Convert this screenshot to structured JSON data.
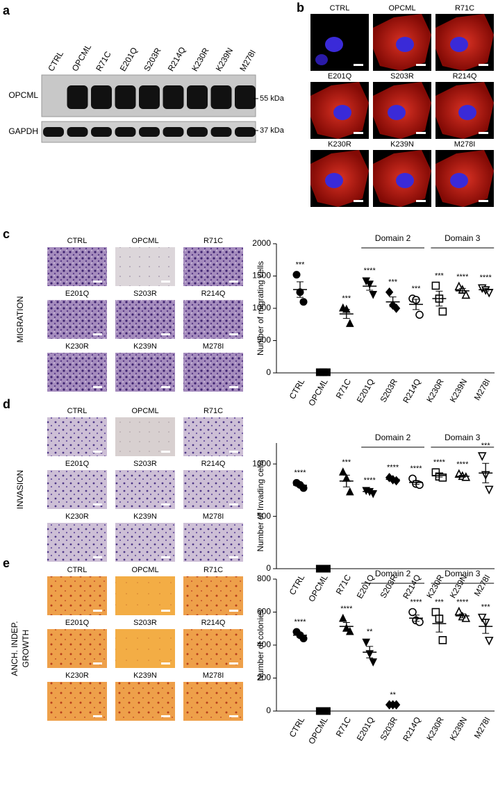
{
  "panel_letters": [
    "a",
    "b",
    "c",
    "d",
    "e"
  ],
  "blot": {
    "lanes": [
      "CTRL",
      "OPCML",
      "R71C",
      "E201Q",
      "S203R",
      "R214Q",
      "K230R",
      "K239N",
      "M278I"
    ],
    "rows": [
      {
        "label": "OPCML",
        "size": "55 kDa"
      },
      {
        "label": "GAPDH",
        "size": "37 kDa"
      }
    ]
  },
  "micrographs": {
    "labels": [
      "CTRL",
      "OPCML",
      "R71C",
      "E201Q",
      "S203R",
      "R214Q",
      "K230R",
      "K239N",
      "M278I"
    ]
  },
  "assays": [
    {
      "label": [
        "MIGRATION"
      ],
      "tiles": [
        "CTRL",
        "OPCML",
        "R71C",
        "E201Q",
        "S203R",
        "R214Q",
        "K230R",
        "K239N",
        "M278I"
      ]
    },
    {
      "label": [
        "INVASION"
      ],
      "tiles": [
        "CTRL",
        "OPCML",
        "R71C",
        "E201Q",
        "S203R",
        "R214Q",
        "K230R",
        "K239N",
        "M278I"
      ]
    },
    {
      "label": [
        "ANCH. INDEP.",
        "GROWTH"
      ],
      "tiles": [
        "CTRL",
        "OPCML",
        "R71C",
        "E201Q",
        "S203R",
        "R214Q",
        "K230R",
        "K239N",
        "M278I"
      ]
    }
  ],
  "chart_data": [
    {
      "type": "scatter",
      "y_label": "Number of migrating cells",
      "categories": [
        "CTRL",
        "OPCML",
        "R71C",
        "E201Q",
        "S203R",
        "R214Q",
        "K230R",
        "K239N",
        "M278I"
      ],
      "replicates": [
        [
          1520,
          1250,
          1100
        ],
        [
          10,
          10,
          10
        ],
        [
          1000,
          980,
          760
        ],
        [
          1430,
          1380,
          1220
        ],
        [
          1250,
          1050,
          1000
        ],
        [
          1150,
          1130,
          900
        ],
        [
          1350,
          1150,
          950
        ],
        [
          1330,
          1280,
          1200
        ],
        [
          1320,
          1290,
          1250
        ]
      ],
      "means": [
        1290,
        10,
        913,
        1343,
        1100,
        1060,
        1150,
        1270,
        1287
      ],
      "errors": [
        120,
        0,
        70,
        63,
        76,
        80,
        115,
        38,
        20
      ],
      "annotations": [
        "***",
        null,
        "***",
        "****",
        "***",
        "***",
        "***",
        "****",
        "****"
      ],
      "groups": [
        {
          "label": "Domain 2",
          "categories": [
            "E201Q",
            "S203R",
            "R214Q"
          ]
        },
        {
          "label": "Domain 3",
          "categories": [
            "K230R",
            "K239N",
            "M278I"
          ]
        }
      ],
      "markers": [
        "circle",
        "square",
        "triangle",
        "triangle-down",
        "diamond",
        "circle-open",
        "square-open",
        "triangle-open",
        "triangle-down-open"
      ],
      "color": "#000000",
      "ylim": [
        0,
        2000
      ],
      "yticks": [
        0,
        500,
        1000,
        1500,
        2000
      ]
    },
    {
      "type": "scatter",
      "y_label": "Number of Invading cells",
      "categories": [
        "CTRL",
        "OPCML",
        "R71C",
        "E201Q",
        "S203R",
        "R214Q",
        "K230R",
        "K239N",
        "M278I"
      ],
      "replicates": [
        [
          820,
          800,
          770
        ],
        [
          0,
          0,
          0
        ],
        [
          920,
          860,
          730
        ],
        [
          750,
          740,
          720
        ],
        [
          870,
          850,
          840
        ],
        [
          860,
          810,
          800
        ],
        [
          920,
          880,
          870
        ],
        [
          900,
          880,
          870
        ],
        [
          1080,
          900,
          760
        ]
      ],
      "means": [
        797,
        0,
        837,
        737,
        853,
        823,
        890,
        883,
        913
      ],
      "errors": [
        15,
        0,
        56,
        9,
        9,
        18,
        15,
        9,
        93
      ],
      "annotations": [
        "****",
        null,
        "***",
        "****",
        "****",
        "****",
        "****",
        "****",
        "***"
      ],
      "groups": [
        {
          "label": "Domain 2",
          "categories": [
            "E201Q",
            "S203R",
            "R214Q"
          ]
        },
        {
          "label": "Domain 3",
          "categories": [
            "K230R",
            "K239N",
            "M278I"
          ]
        }
      ],
      "markers": [
        "circle",
        "square",
        "triangle",
        "triangle-down",
        "diamond",
        "circle-open",
        "square-open",
        "triangle-open",
        "triangle-down-open"
      ],
      "color": "#000000",
      "ylim": [
        0,
        1200
      ],
      "yticks": [
        0,
        500,
        1000
      ]
    },
    {
      "type": "scatter",
      "y_label": "Number of colonies",
      "categories": [
        "CTRL",
        "OPCML",
        "R71C",
        "E201Q",
        "S203R",
        "R214Q",
        "K230R",
        "K239N",
        "M278I"
      ],
      "replicates": [
        [
          480,
          460,
          440
        ],
        [
          0,
          0,
          0
        ],
        [
          560,
          500,
          480
        ],
        [
          420,
          350,
          300
        ],
        [
          38,
          38,
          38
        ],
        [
          600,
          550,
          540
        ],
        [
          600,
          560,
          430
        ],
        [
          600,
          570,
          560
        ],
        [
          570,
          540,
          430
        ]
      ],
      "means": [
        460,
        0,
        513,
        357,
        38,
        563,
        530,
        577,
        513
      ],
      "errors": [
        12,
        0,
        24,
        35,
        0,
        19,
        51,
        12,
        42
      ],
      "annotations": [
        "****",
        null,
        "****",
        "**",
        "**",
        "****",
        "***",
        "****",
        "***"
      ],
      "groups": [
        {
          "label": "Domain 2",
          "categories": [
            "E201Q",
            "S203R",
            "R214Q"
          ]
        },
        {
          "label": "Domain 3",
          "categories": [
            "K230R",
            "K239N",
            "M278I"
          ]
        }
      ],
      "markers": [
        "circle",
        "square",
        "triangle",
        "triangle-down",
        "diamond",
        "circle-open",
        "square-open",
        "triangle-open",
        "triangle-down-open"
      ],
      "color": "#000000",
      "ylim": [
        0,
        800
      ],
      "yticks": [
        0,
        200,
        400,
        600,
        800
      ]
    }
  ]
}
